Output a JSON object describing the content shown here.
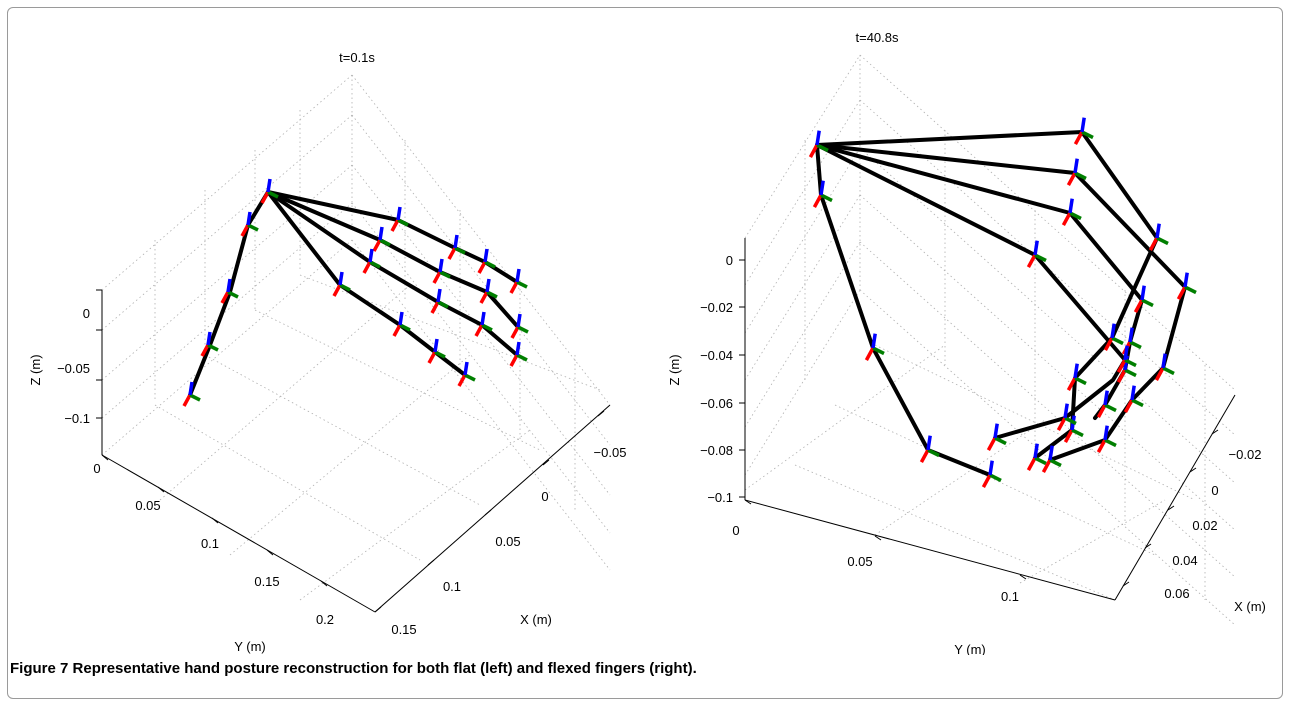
{
  "caption": {
    "label": "Figure 7",
    "text": "Representative hand posture reconstruction for both flat (left) and flexed fingers (right)."
  },
  "colors": {
    "skeleton": "#000000",
    "frame_x": "#ff0000",
    "frame_y": "#007f00",
    "frame_z": "#0000ff",
    "grid": "#b0b0b0",
    "axes": "#000000"
  },
  "chart_data": [
    {
      "type": "3d-line",
      "title": "t=0.1s",
      "xlabel": "X (m)",
      "ylabel": "Y (m)",
      "zlabel": "Z (m)",
      "x_ticks": [
        "0.15",
        "0.1",
        "0.05",
        "0",
        "−0.05"
      ],
      "y_ticks": [
        "0",
        "0.05",
        "0.1",
        "0.15",
        "0.2"
      ],
      "z_ticks": [
        "0",
        "−0.05",
        "−0.1"
      ],
      "grid": true
    },
    {
      "type": "3d-line",
      "title": "t=40.8s",
      "xlabel": "X (m)",
      "ylabel": "Y (m)",
      "zlabel": "Z (m)",
      "x_ticks": [
        "−0.02",
        "0",
        "0.02",
        "0.04",
        "0.06"
      ],
      "y_ticks": [
        "0",
        "0.05",
        "0.1"
      ],
      "z_ticks": [
        "0",
        "−0.02",
        "−0.04",
        "−0.06",
        "−0.08",
        "−0.1"
      ],
      "grid": true
    }
  ]
}
